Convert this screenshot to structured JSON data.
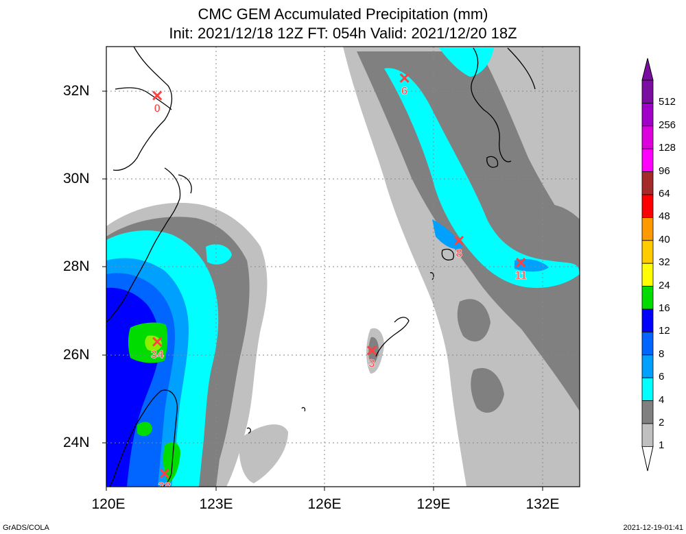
{
  "title": {
    "line1": "CMC GEM Accumulated Precipitation (mm)",
    "line2": "Init: 2021/12/18 12Z  FT: 054h  Valid: 2021/12/20 18Z"
  },
  "axes": {
    "lat_labels": [
      "32N",
      "30N",
      "28N",
      "26N",
      "24N"
    ],
    "lon_labels": [
      "120E",
      "123E",
      "126E",
      "129E",
      "132E"
    ]
  },
  "colorbar": {
    "levels": [
      "512",
      "256",
      "128",
      "96",
      "64",
      "48",
      "40",
      "32",
      "24",
      "16",
      "12",
      "8",
      "6",
      "4",
      "2",
      "1"
    ],
    "colors": [
      "#7a0ea0",
      "#a000c8",
      "#dc00dc",
      "#ff00ff",
      "#a52a2a",
      "#ff0000",
      "#ff9900",
      "#ffcc00",
      "#ffff00",
      "#00dc00",
      "#0000ff",
      "#0066ff",
      "#00a0ff",
      "#00ffff",
      "#808080",
      "#c0c0c0"
    ]
  },
  "markers": [
    {
      "label": "0",
      "lon": 121.4,
      "lat": 31.9
    },
    {
      "label": "6",
      "lon": 128.2,
      "lat": 32.3
    },
    {
      "label": "8",
      "lon": 129.7,
      "lat": 28.6
    },
    {
      "label": "11",
      "lon": 131.4,
      "lat": 28.1
    },
    {
      "label": "3",
      "lon": 127.3,
      "lat": 26.1
    },
    {
      "label": "34",
      "lon": 121.4,
      "lat": 26.3
    },
    {
      "label": "38",
      "lon": 121.6,
      "lat": 23.3
    }
  ],
  "footer": {
    "left": "GrADS/COLA",
    "right": "2021-12-19-01:41"
  }
}
